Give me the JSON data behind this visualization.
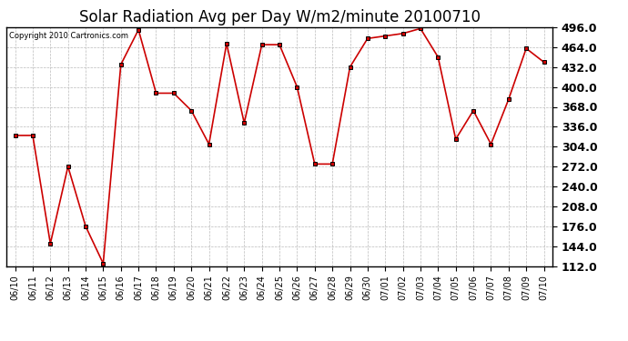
{
  "title": "Solar Radiation Avg per Day W/m2/minute 20100710",
  "copyright": "Copyright 2010 Cartronics.com",
  "labels": [
    "06/10",
    "06/11",
    "06/12",
    "06/13",
    "06/14",
    "06/15",
    "06/16",
    "06/17",
    "06/18",
    "06/19",
    "06/20",
    "06/21",
    "06/22",
    "06/23",
    "06/24",
    "06/25",
    "06/26",
    "06/27",
    "06/28",
    "06/29",
    "06/30",
    "07/01",
    "07/02",
    "07/03",
    "07/04",
    "07/05",
    "07/06",
    "07/07",
    "07/08",
    "07/09",
    "07/10"
  ],
  "values": [
    322,
    322,
    148,
    272,
    176,
    116,
    436,
    492,
    390,
    390,
    362,
    308,
    470,
    342,
    468,
    468,
    400,
    276,
    276,
    432,
    478,
    482,
    486,
    494,
    448,
    316,
    362,
    308,
    380,
    462,
    440
  ],
  "line_color": "#cc0000",
  "marker_color": "#000000",
  "bg_color": "#ffffff",
  "grid_color": "#bbbbbb",
  "ylim_min": 112.0,
  "ylim_max": 496.0,
  "ytick_step": 32.0,
  "title_fontsize": 12,
  "label_fontsize": 7,
  "ytick_fontsize": 9,
  "copyright_fontsize": 6
}
